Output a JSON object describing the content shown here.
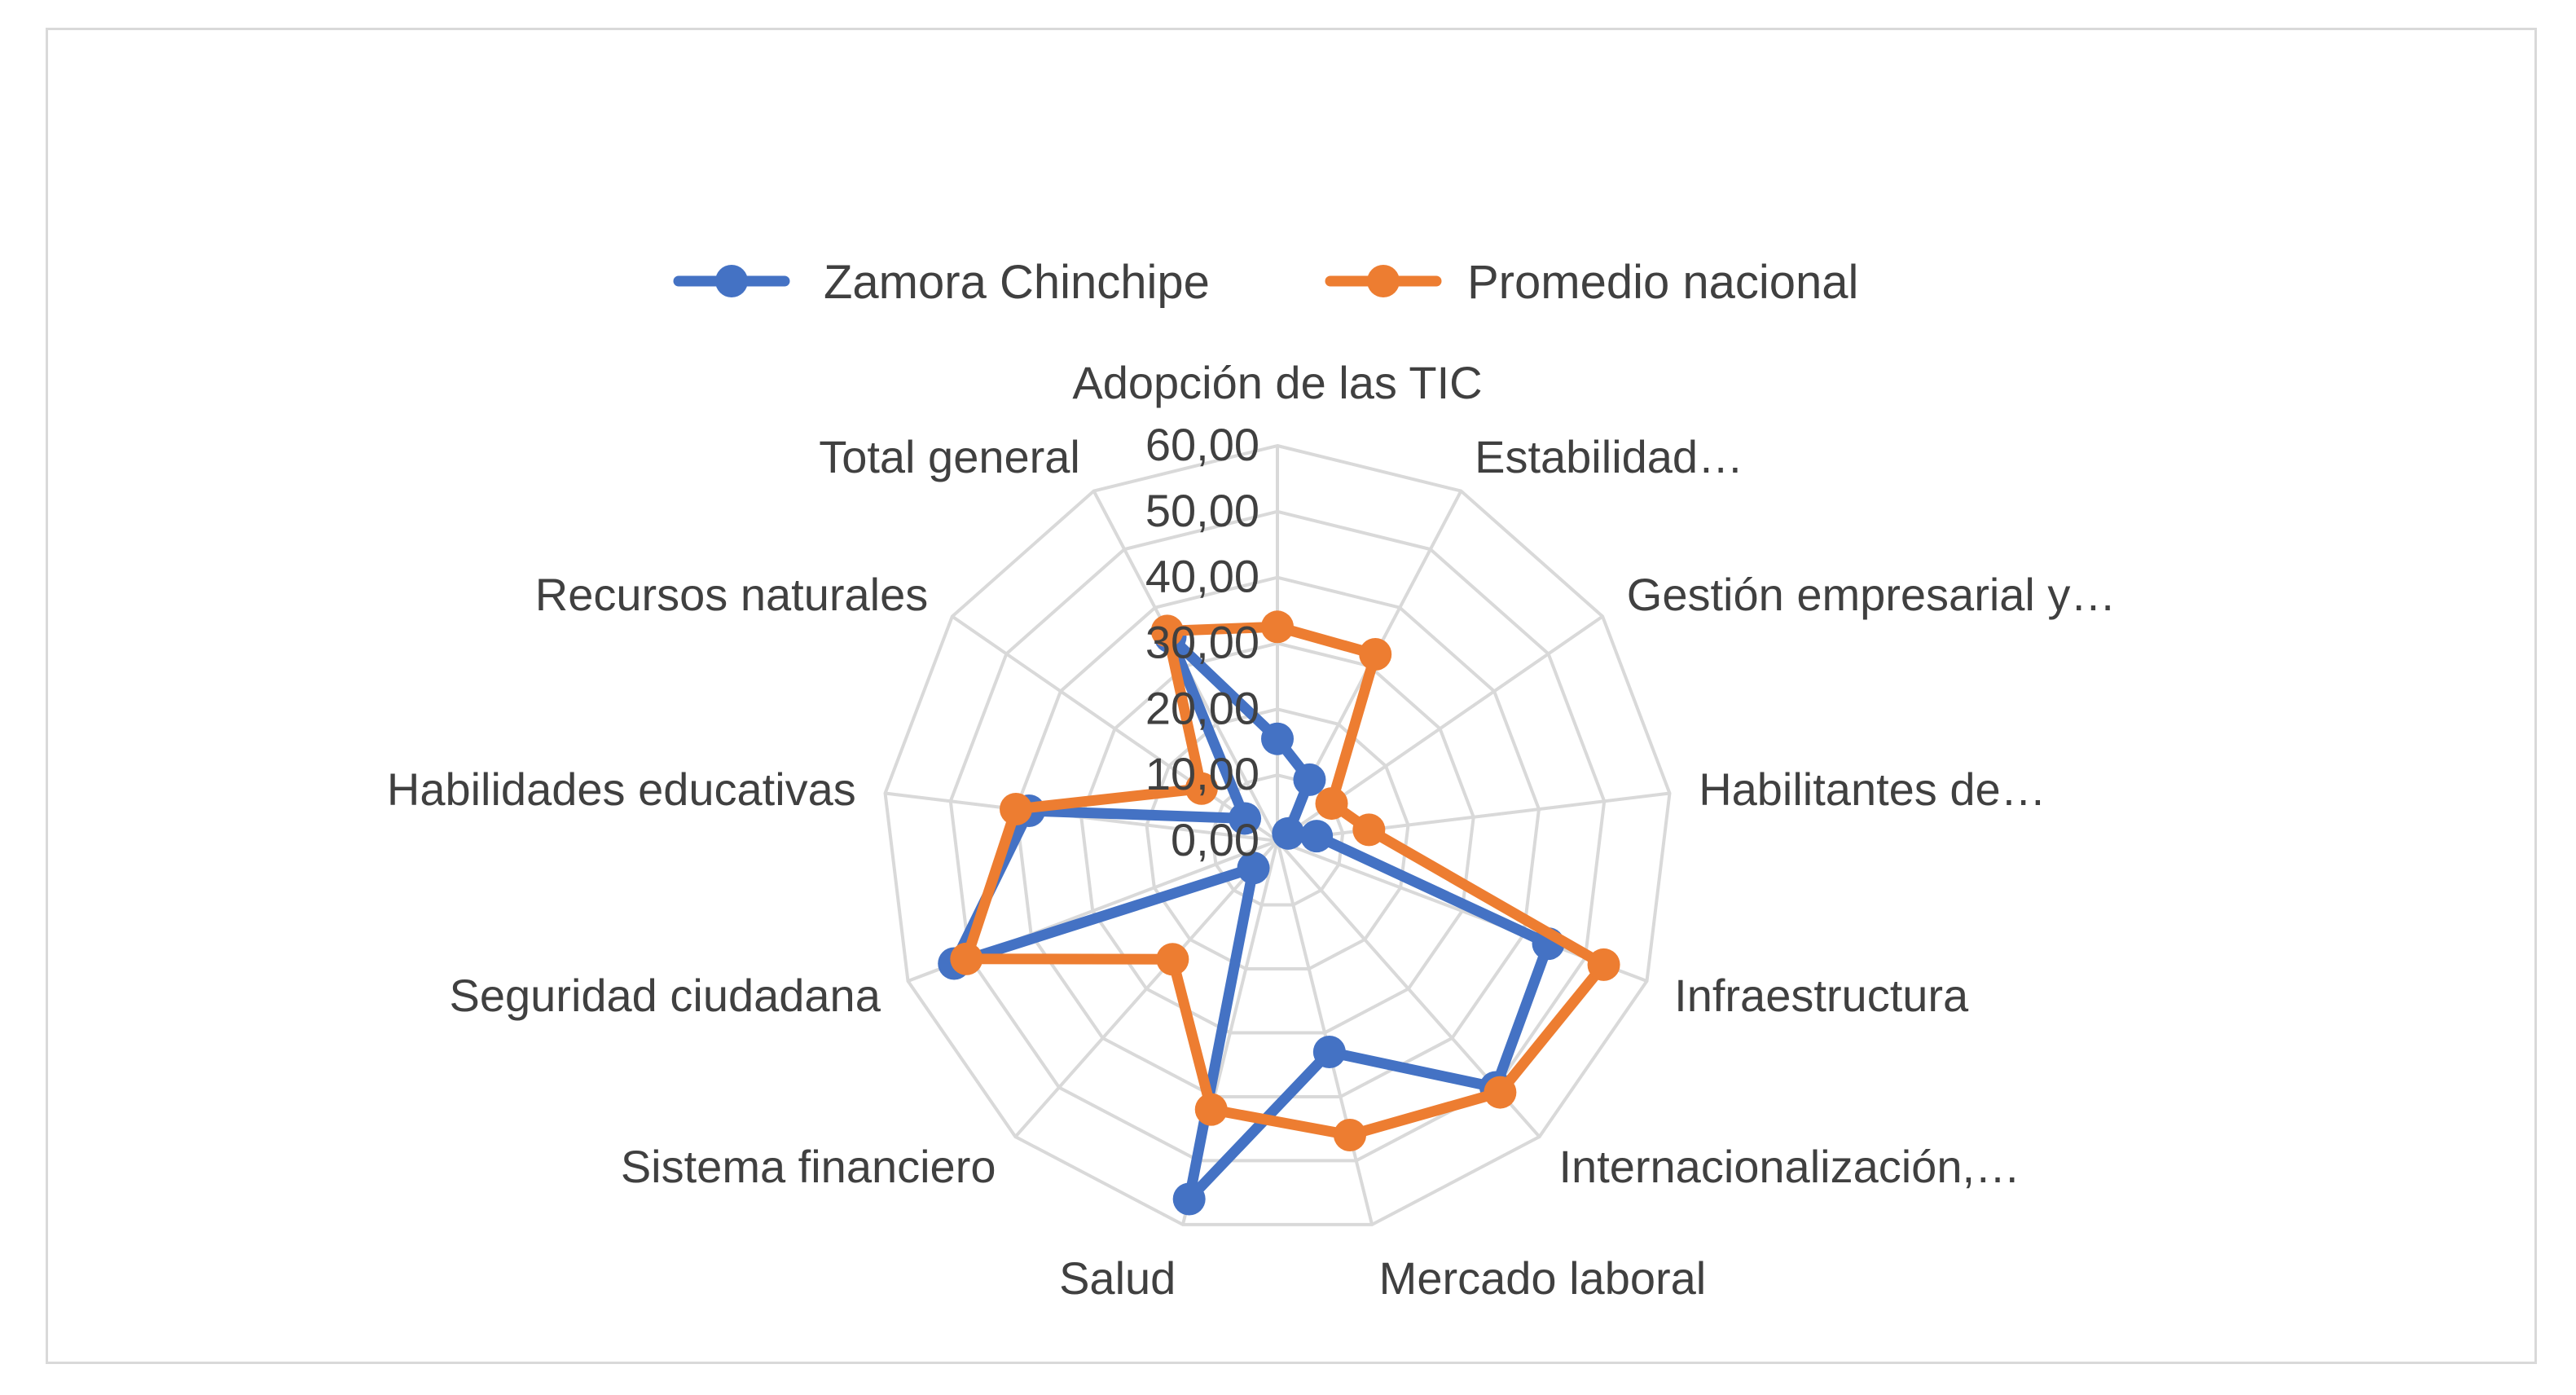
{
  "chart_data": {
    "type": "radar",
    "categories": [
      "Adopción de las TIC",
      "Estabilidad…",
      "Gestión empresarial y…",
      "Habilitantes de…",
      "Infraestructura",
      "Internacionalización,…",
      "Mercado laboral",
      "Salud",
      "Sistema financiero",
      "Seguridad ciudadana",
      "Habilidades educativas",
      "Recursos naturales",
      "Total general"
    ],
    "series": [
      {
        "name": "Zamora Chinchipe",
        "color": "#4472c4",
        "values": [
          15.5,
          10.5,
          2.0,
          6.0,
          44.0,
          50.0,
          33.0,
          56.0,
          5.5,
          52.5,
          38.0,
          6.0,
          35.0
        ]
      },
      {
        "name": "Promedio nacional",
        "color": "#ed7d31",
        "values": [
          32.5,
          32.0,
          10.0,
          14.0,
          53.0,
          51.0,
          46.0,
          42.0,
          24.0,
          50.5,
          40.0,
          14.0,
          36.0
        ]
      }
    ],
    "rlim": [
      0,
      60
    ],
    "ticks": [
      "0,00",
      "10,00",
      "20,00",
      "30,00",
      "40,00",
      "50,00",
      "60,00"
    ],
    "grid": true,
    "legend_position": "top"
  }
}
